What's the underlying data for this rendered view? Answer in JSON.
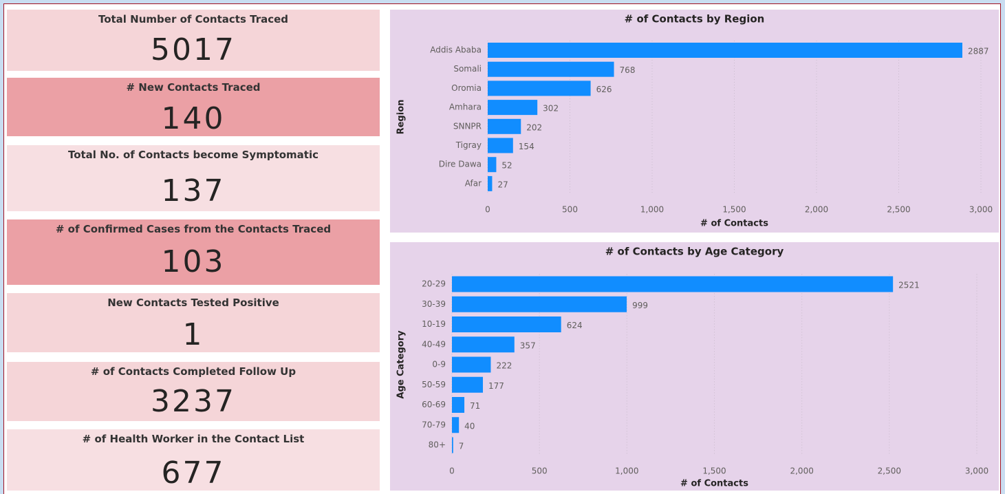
{
  "cards": [
    {
      "title": "Total Number of Contacts Traced",
      "value": "5017"
    },
    {
      "title": "# New Contacts Traced",
      "value": "140"
    },
    {
      "title": "Total No. of Contacts become Symptomatic",
      "value": "137"
    },
    {
      "title": "# of Confirmed Cases from the Contacts Traced",
      "value": "103"
    },
    {
      "title": "New Contacts Tested Positive",
      "value": "1"
    },
    {
      "title": "# of Contacts Completed Follow Up",
      "value": "3237"
    },
    {
      "title": "# of Health Worker in the Contact List",
      "value": "677"
    }
  ],
  "chart_data": [
    {
      "type": "bar",
      "orientation": "horizontal",
      "title": "# of Contacts by Region",
      "x_label": "# of Contacts",
      "y_label": "Region",
      "categories": [
        "Addis Ababa",
        "Somali",
        "Oromia",
        "Amhara",
        "SNNPR",
        "Tigray",
        "Dire Dawa",
        "Afar"
      ],
      "values": [
        2887,
        768,
        626,
        302,
        202,
        154,
        52,
        27
      ],
      "color": "#118dff",
      "xlim": [
        0,
        3000
      ],
      "xticks": [
        0,
        500,
        {
          "value": 1000,
          "label": "1,000"
        },
        {
          "value": 1500,
          "label": "1,500"
        },
        {
          "value": 2000,
          "label": "2,000"
        },
        {
          "value": 2500,
          "label": "2,500"
        },
        {
          "value": 3000,
          "label": "3,000"
        }
      ],
      "grid": true
    },
    {
      "type": "bar",
      "orientation": "horizontal",
      "title": "# of Contacts by Age Category",
      "x_label": "# of Contacts",
      "y_label": "Age Category",
      "categories": [
        "20-29",
        "30-39",
        "10-19",
        "40-49",
        "0-9",
        "50-59",
        "60-69",
        "70-79",
        "80+"
      ],
      "values": [
        2521,
        999,
        624,
        357,
        222,
        177,
        71,
        40,
        7
      ],
      "color": "#118dff",
      "xlim": [
        0,
        3000
      ],
      "xticks": [
        0,
        500,
        {
          "value": 1000,
          "label": "1,000"
        },
        {
          "value": 1500,
          "label": "1,500"
        },
        {
          "value": 2000,
          "label": "2,000"
        },
        {
          "value": 2500,
          "label": "2,500"
        },
        {
          "value": 3000,
          "label": "3,000"
        }
      ],
      "grid": true
    }
  ]
}
